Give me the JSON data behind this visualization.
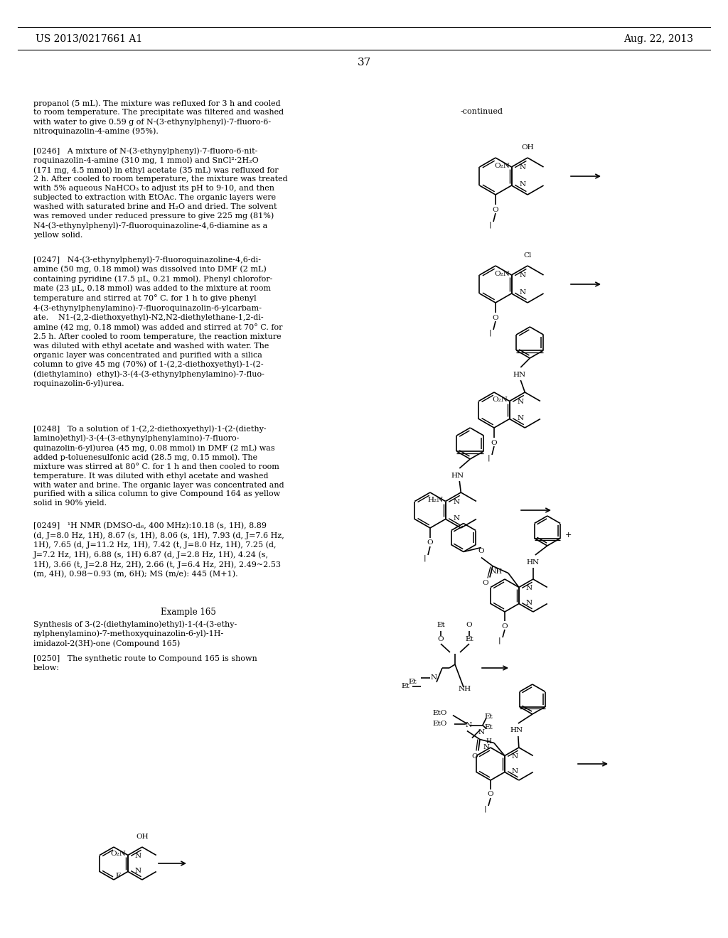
{
  "page_number": "37",
  "left_header": "US 2013/0217661 A1",
  "right_header": "Aug. 22, 2013",
  "background_color": "#ffffff",
  "continued_label": "-continued",
  "para0": "propanol (5 mL). The mixture was refluxed for 3 h and cooled\nto room temperature. The precipitate was filtered and washed\nwith water to give 0.59 g of N-(3-ethynylphenyl)-7-fluoro-6-\nnitroquinazolin-4-amine (95%).",
  "para1": "[0246]   A mixture of N-(3-ethynylphenyl)-7-fluoro-6-nit-\nroquinazolin-4-amine (310 mg, 1 mmol) and SnCl²·2H₂O\n(171 mg, 4.5 mmol) in ethyl acetate (35 mL) was refluxed for\n2 h. After cooled to room temperature, the mixture was treated\nwith 5% aqueous NaHCO₃ to adjust its pH to 9-10, and then\nsubjected to extraction with EtOAc. The organic layers were\nwashed with saturated brine and H₂O and dried. The solvent\nwas removed under reduced pressure to give 225 mg (81%)\nN4-(3-ethynylphenyl)-7-fluoroquinazoline-4,6-diamine as a\nyellow solid.",
  "para2": "[0247]   N4-(3-ethynylphenyl)-7-fluoroquinazoline-4,6-di-\namine (50 mg, 0.18 mmol) was dissolved into DMF (2 mL)\ncontaining pyridine (17.5 μL, 0.21 mmol). Phenyl chlorofor-\nmate (23 μL, 0.18 mmol) was added to the mixture at room\ntemperature and stirred at 70° C. for 1 h to give phenyl\n4-(3-ethynylphenylamino)-7-fluoroquinazolin-6-ylcarbam-\nate.    N1-(2,2-diethoxyethyl)-N2,N2-diethylethane-1,2-di-\namine (42 mg, 0.18 mmol) was added and stirred at 70° C. for\n2.5 h. After cooled to room temperature, the reaction mixture\nwas diluted with ethyl acetate and washed with water. The\norganic layer was concentrated and purified with a silica\ncolumn to give 45 mg (70%) of 1-(2,2-diethoxyethyl)-1-(2-\n(diethylamino)  ethyl)-3-(4-(3-ethynylphenylamino)-7-fluo-\nroquinazolin-6-yl)urea.",
  "para3": "[0248]   To a solution of 1-(2,2-diethoxyethyl)-1-(2-(diethy-\nlamino)ethyl)-3-(4-(3-ethynylphenylamino)-7-fluoro-\nquinazolin-6-yl)urea (45 mg, 0.08 mmol) in DMF (2 mL) was\nadded p-toluenesulfonic acid (28.5 mg, 0.15 mmol). The\nmixture was stirred at 80° C. for 1 h and then cooled to room\ntemperature. It was diluted with ethyl acetate and washed\nwith water and brine. The organic layer was concentrated and\npurified with a silica column to give Compound 164 as yellow\nsolid in 90% yield.",
  "para4": "[0249]   ¹H NMR (DMSO-d₆, 400 MHz):10.18 (s, 1H), 8.89\n(d, J=8.0 Hz, 1H), 8.67 (s, 1H), 8.06 (s, 1H), 7.93 (d, J=7.6 Hz,\n1H), 7.65 (d, J=11.2 Hz, 1H), 7.42 (t, J=8.0 Hz, 1H), 7.25 (d,\nJ=7.2 Hz, 1H), 6.88 (s, 1H) 6.87 (d, J=2.8 Hz, 1H), 4.24 (s,\n1H), 3.66 (t, J=2.8 Hz, 2H), 2.66 (t, J=6.4 Hz, 2H), 2.49~2.53\n(m, 4H), 0.98~0.93 (m, 6H); MS (m/e): 445 (M+1).",
  "ex165_title": "Example 165",
  "ex165_sub": "Synthesis of 3-(2-(diethylamino)ethyl)-1-(4-(3-ethy-\nnylphenylamino)-7-methoxyquinazolin-6-yl)-1H-\nimidazol-2(3H)-one (Compound 165)",
  "para5": "[0250]   The synthetic route to Compound 165 is shown\nbelow:"
}
